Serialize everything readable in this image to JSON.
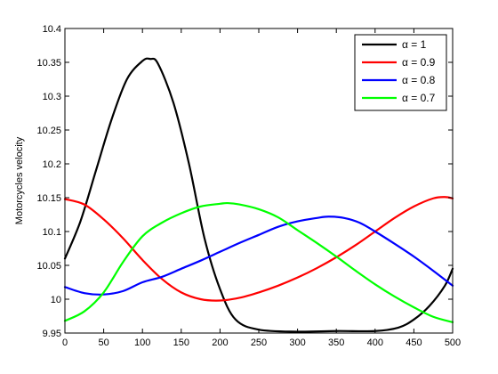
{
  "chart_data": {
    "type": "line",
    "title": "",
    "xlabel": "",
    "ylabel": "Motorcycles velocity",
    "xlim": [
      0,
      500
    ],
    "ylim": [
      9.95,
      10.4
    ],
    "xticks": [
      "0",
      "50",
      "100",
      "150",
      "200",
      "250",
      "300",
      "350",
      "400",
      "450",
      "500"
    ],
    "yticks": [
      "9.95",
      "10",
      "10.05",
      "10.1",
      "10.15",
      "10.2",
      "10.25",
      "10.3",
      "10.35",
      "10.4"
    ],
    "grid": false,
    "legend_position": "top-right",
    "series": [
      {
        "name": "α = 1",
        "color": "#000000",
        "x": [
          0,
          20,
          40,
          60,
          80,
          100,
          110,
          120,
          140,
          160,
          180,
          200,
          220,
          250,
          300,
          350,
          400,
          430,
          450,
          470,
          490,
          500
        ],
        "y": [
          10.06,
          10.115,
          10.19,
          10.265,
          10.325,
          10.352,
          10.355,
          10.348,
          10.29,
          10.2,
          10.09,
          10.015,
          9.97,
          9.955,
          9.952,
          9.953,
          9.953,
          9.958,
          9.97,
          9.99,
          10.02,
          10.045
        ]
      },
      {
        "name": "α = 0.9",
        "color": "#ff0000",
        "x": [
          0,
          25,
          50,
          75,
          100,
          125,
          150,
          175,
          200,
          225,
          250,
          275,
          300,
          325,
          350,
          375,
          400,
          425,
          450,
          475,
          490,
          500
        ],
        "y": [
          10.148,
          10.14,
          10.118,
          10.09,
          10.058,
          10.03,
          10.01,
          10.0,
          9.998,
          10.002,
          10.01,
          10.02,
          10.032,
          10.046,
          10.062,
          10.08,
          10.1,
          10.12,
          10.137,
          10.149,
          10.151,
          10.149
        ]
      },
      {
        "name": "α = 0.8",
        "color": "#0000ff",
        "x": [
          0,
          25,
          50,
          75,
          100,
          125,
          150,
          175,
          200,
          225,
          250,
          275,
          300,
          325,
          340,
          360,
          380,
          400,
          425,
          450,
          475,
          500
        ],
        "y": [
          10.018,
          10.009,
          10.007,
          10.012,
          10.025,
          10.033,
          10.045,
          10.057,
          10.07,
          10.083,
          10.095,
          10.107,
          10.115,
          10.12,
          10.122,
          10.12,
          10.113,
          10.1,
          10.082,
          10.063,
          10.042,
          10.02
        ]
      },
      {
        "name": "α = 0.7",
        "color": "#00ff00",
        "x": [
          0,
          25,
          50,
          75,
          100,
          125,
          150,
          175,
          200,
          210,
          225,
          250,
          275,
          300,
          325,
          350,
          375,
          400,
          425,
          450,
          475,
          500
        ],
        "y": [
          9.968,
          9.982,
          10.01,
          10.055,
          10.093,
          10.113,
          10.127,
          10.137,
          10.141,
          10.142,
          10.14,
          10.133,
          10.121,
          10.102,
          10.083,
          10.063,
          10.042,
          10.022,
          10.004,
          9.988,
          9.974,
          9.966
        ]
      }
    ]
  }
}
